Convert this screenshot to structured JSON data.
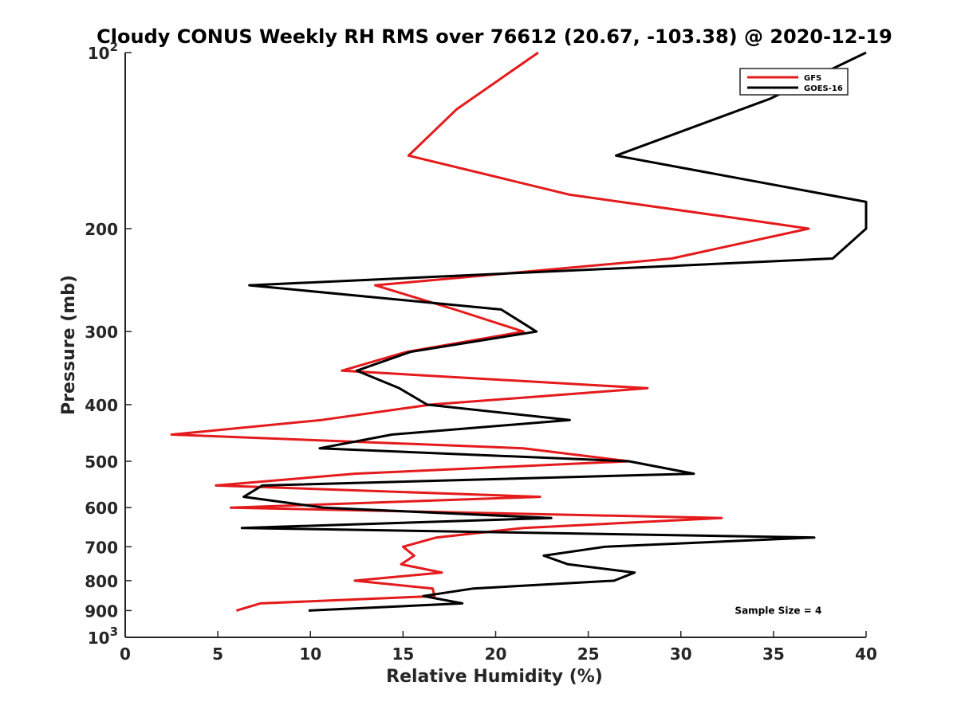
{
  "chart_data": {
    "type": "line",
    "title": "Cloudy CONUS Weekly RH RMS over 76612 (20.67, -103.38) @ 2020-12-19",
    "xlabel": "Relative Humidity (%)",
    "ylabel": "Pressure (mb)",
    "xlim": [
      0,
      40
    ],
    "ylim": [
      100,
      1000
    ],
    "yscale": "log",
    "y_reversed": true,
    "grid": false,
    "legend_position": "top-right",
    "x_ticks": [
      {
        "value": 0,
        "label": "0"
      },
      {
        "value": 5,
        "label": "5"
      },
      {
        "value": 10,
        "label": "10"
      },
      {
        "value": 15,
        "label": "15"
      },
      {
        "value": 20,
        "label": "20"
      },
      {
        "value": 25,
        "label": "25"
      },
      {
        "value": 30,
        "label": "30"
      },
      {
        "value": 35,
        "label": "35"
      },
      {
        "value": 40,
        "label": "40"
      }
    ],
    "y_ticks": [
      {
        "value": 100,
        "base": "10",
        "exp": "2"
      },
      {
        "value": 200,
        "base": "200",
        "exp": ""
      },
      {
        "value": 300,
        "base": "300",
        "exp": ""
      },
      {
        "value": 400,
        "base": "400",
        "exp": ""
      },
      {
        "value": 500,
        "base": "500",
        "exp": ""
      },
      {
        "value": 600,
        "base": "600",
        "exp": ""
      },
      {
        "value": 700,
        "base": "700",
        "exp": ""
      },
      {
        "value": 800,
        "base": "800",
        "exp": ""
      },
      {
        "value": 900,
        "base": "900",
        "exp": ""
      },
      {
        "value": 1000,
        "base": "10",
        "exp": "3"
      }
    ],
    "series": [
      {
        "name": "GFS",
        "color": "#e41a1c",
        "points": [
          [
            22.3,
            100
          ],
          [
            17.9,
            125
          ],
          [
            15.3,
            150
          ],
          [
            24.0,
            175
          ],
          [
            33.0,
            192
          ],
          [
            36.9,
            200
          ],
          [
            29.5,
            225
          ],
          [
            13.5,
            250
          ],
          [
            17.8,
            275
          ],
          [
            21.5,
            300
          ],
          [
            15.2,
            325
          ],
          [
            11.7,
            350
          ],
          [
            28.2,
            375
          ],
          [
            16.5,
            400
          ],
          [
            10.6,
            425
          ],
          [
            2.5,
            450
          ],
          [
            21.5,
            475
          ],
          [
            27.2,
            500
          ],
          [
            12.4,
            525
          ],
          [
            4.9,
            550
          ],
          [
            22.4,
            575
          ],
          [
            5.7,
            600
          ],
          [
            32.2,
            625
          ],
          [
            21.5,
            650
          ],
          [
            16.8,
            675
          ],
          [
            15.0,
            700
          ],
          [
            15.6,
            725
          ],
          [
            14.9,
            750
          ],
          [
            17.1,
            775
          ],
          [
            12.4,
            800
          ],
          [
            16.6,
            825
          ],
          [
            16.7,
            850
          ],
          [
            7.3,
            875
          ],
          [
            6.0,
            900
          ]
        ]
      },
      {
        "name": "GOES-16",
        "color": "#000000",
        "points": [
          [
            40.0,
            100
          ],
          [
            34.8,
            120
          ],
          [
            26.5,
            150
          ],
          [
            40.0,
            180
          ],
          [
            40.0,
            200
          ],
          [
            38.2,
            225
          ],
          [
            6.7,
            250
          ],
          [
            20.3,
            275
          ],
          [
            22.2,
            300
          ],
          [
            15.4,
            325
          ],
          [
            12.5,
            350
          ],
          [
            14.8,
            375
          ],
          [
            16.3,
            400
          ],
          [
            24.0,
            425
          ],
          [
            14.4,
            450
          ],
          [
            10.5,
            475
          ],
          [
            27.2,
            500
          ],
          [
            30.7,
            525
          ],
          [
            7.4,
            550
          ],
          [
            6.4,
            575
          ],
          [
            10.7,
            600
          ],
          [
            23.0,
            625
          ],
          [
            6.3,
            650
          ],
          [
            37.2,
            675
          ],
          [
            25.9,
            700
          ],
          [
            22.6,
            725
          ],
          [
            23.9,
            750
          ],
          [
            27.5,
            775
          ],
          [
            26.4,
            800
          ],
          [
            18.8,
            825
          ],
          [
            16.1,
            850
          ],
          [
            18.2,
            875
          ],
          [
            9.9,
            900
          ]
        ]
      }
    ],
    "annotations": [
      {
        "text": "Sample Size = 4",
        "x": 33.0,
        "y": 900
      }
    ]
  }
}
